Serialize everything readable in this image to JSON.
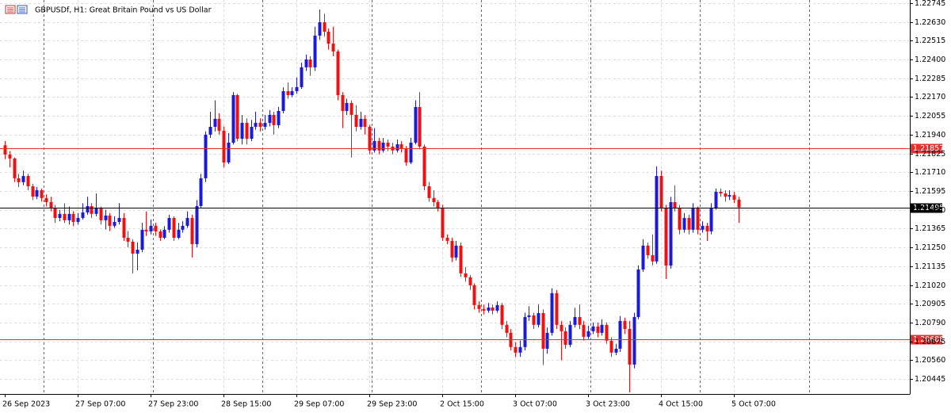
{
  "chart_data": {
    "type": "candlestick",
    "title": "GBPUSDf, H1:  Great Britain Pound vs US Dollar",
    "up_color": "#1a1adc",
    "down_color": "#f01010",
    "ylim": [
      1.20353,
      1.22764
    ],
    "yticks": [
      1.22745,
      {
        "value": 1.2263,
        "label": "1.22630"
      },
      1.22515,
      {
        "value": 1.224,
        "label": "1.22400"
      },
      1.22285,
      {
        "value": 1.2217,
        "label": "1.22170"
      },
      1.22055,
      {
        "value": 1.2194,
        "label": "1.21940"
      },
      1.21825,
      {
        "value": 1.2171,
        "label": "1.21710"
      },
      1.21595,
      {
        "value": 1.2148,
        "label": "1.21480"
      },
      1.21365,
      {
        "value": 1.2125,
        "label": "1.21250"
      },
      1.21135,
      {
        "value": 1.2102,
        "label": "1.21020"
      },
      1.20905,
      {
        "value": 1.2079,
        "label": "1.20790"
      },
      1.20675,
      {
        "value": 1.2056,
        "label": "1.20560"
      },
      1.20445
    ],
    "grid": true,
    "hlines": [
      {
        "value": 1.21857,
        "color": "#e03030"
      },
      {
        "value": 1.20688,
        "color": "#e03030"
      },
      {
        "value": 1.21495,
        "color": "#000000"
      }
    ],
    "categories": [
      "26 Sep 2023",
      null,
      null,
      null,
      null,
      null,
      null,
      null,
      null,
      null,
      null,
      null,
      null,
      null,
      null,
      null,
      "27 Sep 07:00",
      null,
      null,
      null,
      null,
      null,
      null,
      null,
      null,
      null,
      null,
      null,
      null,
      null,
      null,
      null,
      "27 Sep 23:00",
      null,
      null,
      null,
      null,
      null,
      null,
      null,
      null,
      null,
      null,
      null,
      null,
      null,
      null,
      null,
      "28 Sep 15:00",
      null,
      null,
      null,
      null,
      null,
      null,
      null,
      null,
      null,
      null,
      null,
      null,
      null,
      null,
      null,
      "29 Sep 07:00",
      null,
      null,
      null,
      null,
      null,
      null,
      null,
      null,
      null,
      null,
      null,
      null,
      null,
      null,
      null,
      "29 Sep 23:00",
      null,
      null,
      null,
      null,
      null,
      null,
      null,
      null,
      null,
      null,
      null,
      null,
      null,
      null,
      null,
      "2 Oct 15:00",
      null,
      null,
      null,
      null,
      null,
      null,
      null,
      null,
      null,
      null,
      null,
      null,
      null,
      null,
      null,
      "3 Oct 07:00",
      null,
      null,
      null,
      null,
      null,
      null,
      null,
      null,
      null,
      null,
      null,
      null,
      null,
      null,
      null,
      "3 Oct 23:00",
      null,
      null,
      null,
      null,
      null,
      null,
      null,
      null,
      null,
      null,
      null,
      null,
      null,
      null,
      null,
      "4 Oct 15:00",
      null,
      null,
      null,
      null,
      null,
      null,
      null,
      null,
      null,
      null,
      null,
      null,
      null,
      null,
      null,
      "5 Oct 07:00",
      null
    ],
    "open": [
      1.21875,
      1.21818,
      1.21794,
      1.21673,
      1.21649,
      1.21687,
      1.21624,
      1.21561,
      1.216,
      1.21552,
      1.21527,
      1.21493,
      1.2143,
      1.21455,
      1.21416,
      1.21455,
      1.21406,
      1.2143,
      1.21464,
      1.21503,
      1.21455,
      1.21493,
      1.21416,
      1.21445,
      1.21382,
      1.21406,
      1.2143,
      1.21309,
      1.21285,
      1.21212,
      1.21236,
      1.21358,
      1.21348,
      1.21382,
      1.21348,
      1.21309,
      1.21358,
      1.2143,
      1.21309,
      1.21358,
      1.21382,
      1.2143,
      1.2127,
      1.21503,
      1.21673,
      1.2194,
      1.21988,
      1.22037,
      1.21964,
      1.2177,
      1.21891,
      1.22182,
      1.21915,
      1.22012,
      1.21915,
      1.21988,
      1.22012,
      1.21988,
      1.22012,
      1.22061,
      1.21998,
      1.22085,
      1.22206,
      1.22182,
      1.22206,
      1.22231,
      1.22352,
      1.224,
      1.22352,
      1.22546,
      1.22628,
      1.2257,
      1.22497,
      1.22449,
      1.22182,
      1.22085,
      1.22134,
      1.22061,
      1.21988,
      1.22037,
      1.21988,
      1.21843,
      1.21901,
      1.21843,
      1.21891,
      1.21867,
      1.21843,
      1.21881,
      1.21852,
      1.2177,
      1.21891,
      1.22109,
      1.21867,
      1.21624,
      1.21552,
      1.21527,
      1.21493,
      1.21309,
      1.2129,
      1.21188,
      1.21261,
      1.21091,
      1.21067,
      1.21018,
      1.20897,
      1.20873,
      1.20863,
      1.20882,
      1.20863,
      1.20897,
      1.20776,
      1.20727,
      1.2064,
      1.20606,
      1.2064,
      1.20824,
      1.20834,
      1.20776,
      1.20848,
      1.2063,
      1.20727,
      1.2097,
      1.20776,
      1.20737,
      1.20654,
      1.20776,
      1.20824,
      1.20776,
      1.20703,
      1.20737,
      1.20766,
      1.20727,
      1.20776,
      1.20679,
      1.20606,
      1.2063,
      1.208,
      1.20751,
      1.20533,
      1.20824,
      1.21115,
      1.21261,
      1.21202,
      1.21164,
      1.21687,
      1.21493,
      1.21139,
      1.21527,
      1.21493,
      1.21358,
      1.2143,
      1.21358,
      1.21493,
      1.21358,
      1.21382,
      1.21348,
      1.21493,
      1.2159,
      1.2158,
      1.21561,
      1.2157,
      1.21542
    ],
    "high": [
      1.21901,
      1.2184,
      1.218,
      1.217,
      1.2172,
      1.217,
      1.2164,
      1.2162,
      1.2161,
      1.21575,
      1.2156,
      1.2151,
      1.2148,
      1.2152,
      1.215,
      1.2147,
      1.2146,
      1.2152,
      1.2156,
      1.2152,
      1.2158,
      1.215,
      1.2148,
      1.2146,
      1.2144,
      1.2152,
      1.2146,
      1.2135,
      1.213,
      1.2128,
      1.214,
      1.2147,
      1.2142,
      1.214,
      1.2136,
      1.2138,
      1.2145,
      1.2144,
      1.214,
      1.2141,
      1.2147,
      1.2145,
      1.2154,
      1.217,
      1.2196,
      1.2208,
      1.2215,
      1.2207,
      1.2199,
      1.2195,
      1.222,
      1.2219,
      1.2206,
      1.2204,
      1.2203,
      1.2208,
      1.2204,
      1.2206,
      1.2209,
      1.2208,
      1.2211,
      1.2223,
      1.2226,
      1.2223,
      1.2229,
      1.2238,
      1.2243,
      1.2242,
      1.226,
      1.22706,
      1.2268,
      1.2259,
      1.226,
      1.2246,
      1.222,
      1.2216,
      1.2215,
      1.2212,
      1.2208,
      1.2206,
      1.22,
      1.2198,
      1.2192,
      1.2192,
      1.2191,
      1.2189,
      1.2191,
      1.219,
      1.2187,
      1.2192,
      1.2215,
      1.222,
      1.2188,
      1.2165,
      1.216,
      1.2154,
      1.2151,
      1.2133,
      1.2131,
      1.2129,
      1.2128,
      1.2113,
      1.2108,
      1.2103,
      1.2092,
      1.209,
      1.2091,
      1.209,
      1.2092,
      1.2091,
      1.208,
      1.2075,
      1.2067,
      1.2068,
      1.2085,
      1.2089,
      1.2085,
      1.209,
      1.2087,
      1.2076,
      1.21,
      1.2099,
      1.208,
      1.2076,
      1.208,
      1.2088,
      1.209,
      1.208,
      1.2077,
      1.2079,
      1.2079,
      1.2081,
      1.2079,
      1.207,
      1.2066,
      1.2083,
      1.2082,
      1.208,
      1.2085,
      1.2114,
      1.213,
      1.2128,
      1.2133,
      1.21746,
      1.2172,
      1.2151,
      1.2156,
      1.2163,
      1.2151,
      1.2146,
      1.2145,
      1.2152,
      1.215,
      1.2141,
      1.214,
      1.2152,
      1.2161,
      1.2161,
      1.216,
      1.216,
      1.2159,
      1.2156
    ],
    "low": [
      1.2179,
      1.2174,
      1.2165,
      1.2162,
      1.2163,
      1.216,
      1.2154,
      1.21545,
      1.2153,
      1.215,
      1.2147,
      1.214,
      1.2141,
      1.214,
      1.2139,
      1.2138,
      1.2139,
      1.2142,
      1.2145,
      1.2143,
      1.2144,
      1.2139,
      1.2136,
      1.2135,
      1.2137,
      1.2139,
      1.2129,
      1.2125,
      1.21091,
      1.2111,
      1.2122,
      1.2132,
      1.2133,
      1.2132,
      1.2129,
      1.213,
      1.2134,
      1.2129,
      1.213,
      1.2134,
      1.2137,
      1.21188,
      1.2125,
      1.2149,
      1.2165,
      1.2192,
      1.2196,
      1.2194,
      1.2174,
      1.2176,
      1.2188,
      1.219,
      1.2188,
      1.2188,
      1.219,
      1.2197,
      1.2196,
      1.2197,
      1.2199,
      1.2194,
      1.2198,
      1.2207,
      1.2216,
      1.2217,
      1.2219,
      1.2222,
      1.2233,
      1.223,
      1.2233,
      1.2252,
      1.2254,
      1.2246,
      1.2242,
      1.2215,
      1.2198,
      1.2206,
      1.218,
      1.2196,
      1.2197,
      1.2194,
      1.2182,
      1.2183,
      1.2182,
      1.2183,
      1.2184,
      1.2182,
      1.2183,
      1.2183,
      1.2175,
      1.2176,
      1.2188,
      1.2185,
      1.216,
      1.2153,
      1.215,
      1.2147,
      1.2129,
      1.2127,
      1.2116,
      1.2117,
      1.2107,
      1.2104,
      1.2099,
      1.2087,
      1.2085,
      1.2084,
      1.2085,
      1.2084,
      1.2085,
      1.2075,
      1.207,
      1.2062,
      1.2058,
      1.2058,
      1.2062,
      1.208,
      1.2075,
      1.2076,
      1.2053,
      1.206,
      1.2071,
      1.2075,
      1.2056,
      1.2063,
      1.2064,
      1.2076,
      1.2075,
      1.2068,
      1.2069,
      1.2072,
      1.207,
      1.2071,
      1.2066,
      1.2058,
      1.2059,
      1.2061,
      1.2072,
      1.20363,
      1.2051,
      1.2081,
      1.211,
      1.2118,
      1.2114,
      1.2115,
      1.2147,
      1.21057,
      1.2112,
      1.2147,
      1.2133,
      1.2134,
      1.2133,
      1.2134,
      1.2133,
      1.2134,
      1.2129,
      1.2133,
      1.2148,
      1.2156,
      1.2153,
      1.2154,
      1.2152,
      1.214
    ],
    "close": [
      1.21818,
      1.21794,
      1.21673,
      1.21649,
      1.21687,
      1.21624,
      1.21561,
      1.216,
      1.21552,
      1.21527,
      1.21493,
      1.2143,
      1.21455,
      1.21416,
      1.21455,
      1.21406,
      1.2143,
      1.21464,
      1.21503,
      1.21455,
      1.21493,
      1.21416,
      1.21445,
      1.21382,
      1.21406,
      1.2143,
      1.21309,
      1.21285,
      1.21212,
      1.21236,
      1.21358,
      1.21348,
      1.21382,
      1.21348,
      1.21309,
      1.21358,
      1.2143,
      1.21309,
      1.21358,
      1.21382,
      1.2143,
      1.2127,
      1.21503,
      1.21673,
      1.2194,
      1.21988,
      1.22037,
      1.21964,
      1.2177,
      1.21891,
      1.22182,
      1.21915,
      1.22012,
      1.21915,
      1.21988,
      1.22012,
      1.21988,
      1.22012,
      1.22061,
      1.21998,
      1.22085,
      1.22206,
      1.22182,
      1.22206,
      1.22231,
      1.22352,
      1.224,
      1.22352,
      1.22546,
      1.22628,
      1.2257,
      1.22497,
      1.22449,
      1.22182,
      1.22085,
      1.22134,
      1.22061,
      1.21988,
      1.22037,
      1.21988,
      1.21843,
      1.21901,
      1.21843,
      1.21891,
      1.21867,
      1.21843,
      1.21881,
      1.21852,
      1.2177,
      1.21891,
      1.22109,
      1.21867,
      1.21624,
      1.21552,
      1.21527,
      1.21493,
      1.21309,
      1.2129,
      1.21188,
      1.21261,
      1.21091,
      1.21067,
      1.21018,
      1.20897,
      1.20873,
      1.20863,
      1.20882,
      1.20863,
      1.20897,
      1.20776,
      1.20727,
      1.2064,
      1.20606,
      1.2064,
      1.20824,
      1.20834,
      1.20776,
      1.20848,
      1.2063,
      1.20727,
      1.2097,
      1.20776,
      1.20737,
      1.20654,
      1.20776,
      1.20824,
      1.20776,
      1.20703,
      1.20737,
      1.20766,
      1.20727,
      1.20776,
      1.20679,
      1.20606,
      1.2063,
      1.208,
      1.20751,
      1.20533,
      1.20824,
      1.21115,
      1.21261,
      1.21202,
      1.21164,
      1.21687,
      1.21493,
      1.21139,
      1.21527,
      1.21493,
      1.21358,
      1.2143,
      1.21358,
      1.21493,
      1.21358,
      1.21382,
      1.21348,
      1.21493,
      1.2159,
      1.2158,
      1.21561,
      1.2157,
      1.21542,
      1.21495
    ]
  }
}
